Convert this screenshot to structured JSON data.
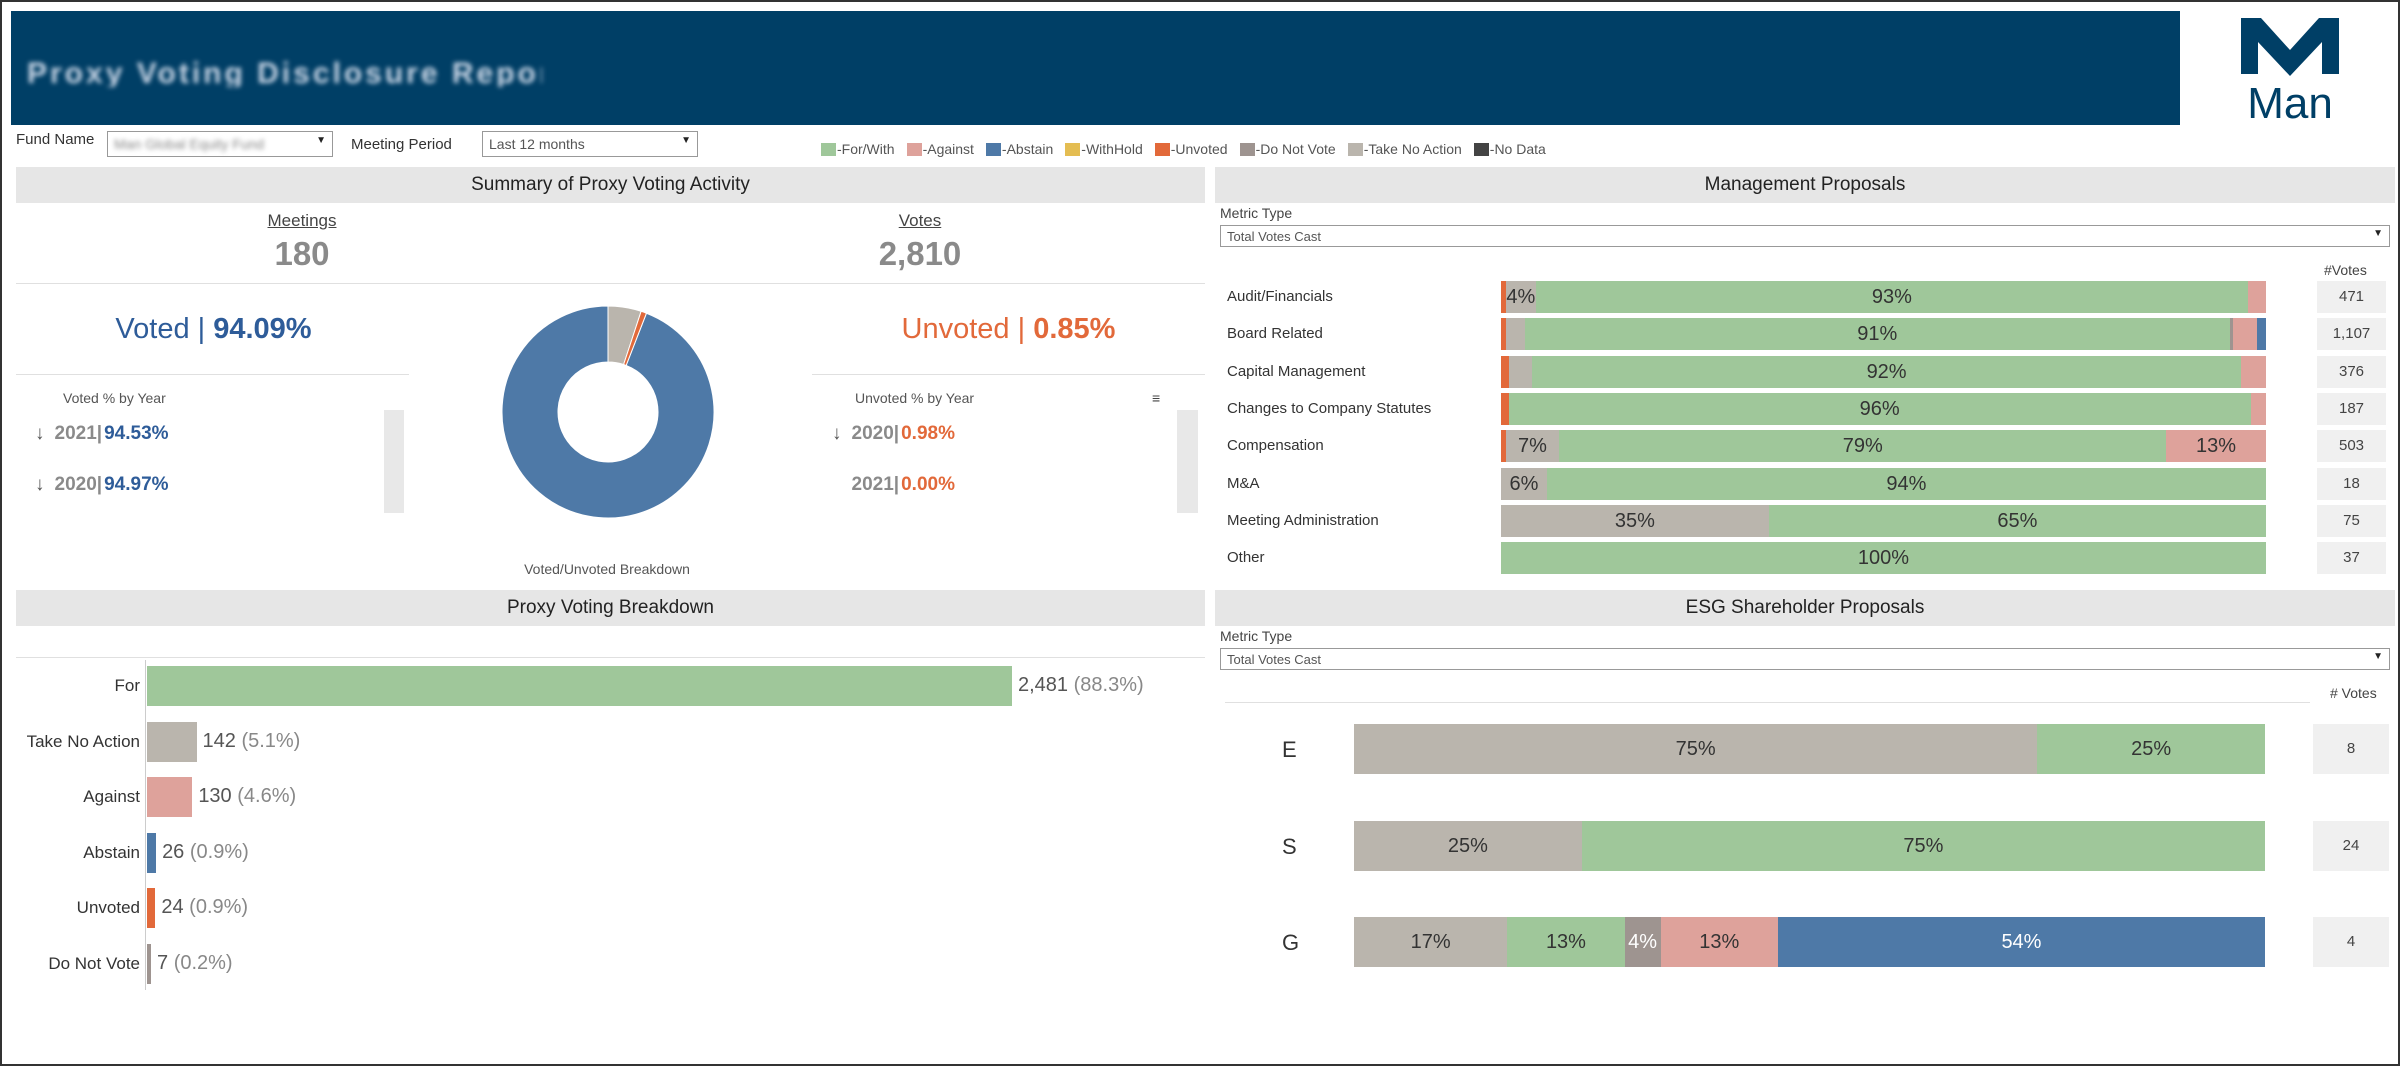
{
  "header": {
    "title": "Proxy Voting Disclosure Report",
    "logo_text": "Man"
  },
  "filters": {
    "fund_label": "Fund Name",
    "fund_value": "Man Global Equity Fund",
    "period_label": "Meeting Period",
    "period_value": "Last 12 months"
  },
  "legend": [
    {
      "label": "-For/With",
      "color": "#9fc79a"
    },
    {
      "label": "-Against",
      "color": "#dea29b"
    },
    {
      "label": "-Abstain",
      "color": "#4e79a7"
    },
    {
      "label": "-WithHold",
      "color": "#e4bd52"
    },
    {
      "label": "-Unvoted",
      "color": "#e2693a"
    },
    {
      "label": "-Do Not Vote",
      "color": "#9e9490"
    },
    {
      "label": "-Take No Action",
      "color": "#bab5ad"
    },
    {
      "label": "-No Data",
      "color": "#444444"
    }
  ],
  "summary": {
    "title": "Summary of Proxy Voting Activity",
    "meetings_label": "Meetings",
    "meetings_value": "180",
    "votes_label": "Votes",
    "votes_value": "2,810",
    "voted_label": "Voted |",
    "voted_pct": "94.09%",
    "unvoted_label": "Unvoted |",
    "unvoted_pct": "0.85%",
    "voted_by_year_label": "Voted % by Year",
    "voted_by_year": [
      {
        "arrow": "↓",
        "year": "2021|",
        "pct": "94.53%"
      },
      {
        "arrow": "↓",
        "year": "2020|",
        "pct": "94.97%"
      }
    ],
    "unvoted_by_year_label": "Unvoted % by Year",
    "unvoted_by_year": [
      {
        "arrow": "↓",
        "year": "2020|",
        "pct": "0.98%"
      },
      {
        "arrow": "",
        "year": "2021|",
        "pct": "0.00%"
      }
    ],
    "donut_caption": "Voted/Unvoted Breakdown"
  },
  "management": {
    "title": "Management Proposals",
    "metric_label": "Metric Type",
    "metric_value": "Total Votes Cast",
    "votes_header": "#Votes"
  },
  "esg": {
    "title": "ESG Shareholder Proposals",
    "metric_label": "Metric Type",
    "metric_value": "Total Votes Cast",
    "votes_header": "# Votes"
  },
  "breakdown": {
    "title": "Proxy Voting Breakdown"
  },
  "chart_data": [
    {
      "type": "pie",
      "name": "Voted/Unvoted Breakdown",
      "slices": [
        {
          "label": "Voted",
          "value": 94.09,
          "color": "#4e79a7"
        },
        {
          "label": "Unvoted",
          "value": 0.85,
          "color": "#e2693a"
        },
        {
          "label": "Take No Action",
          "value": 5.06,
          "color": "#bab5ad"
        }
      ]
    },
    {
      "type": "bar",
      "name": "Management Proposals",
      "stacked": true,
      "orientation": "horizontal",
      "categories": [
        "Audit/Financials",
        "Board Related",
        "Capital Management",
        "Changes to Company Statutes",
        "Compensation",
        "M&A",
        "Meeting Administration",
        "Other"
      ],
      "votes": [
        "471",
        "1,107",
        "376",
        "187",
        "503",
        "18",
        "75",
        "37"
      ],
      "rows": [
        [
          {
            "s": "Unvoted",
            "v": 0.6
          },
          {
            "s": "Take No Action",
            "v": 4,
            "label": "4%"
          },
          {
            "s": "For/With",
            "v": 93,
            "label": "93%"
          },
          {
            "s": "Against",
            "v": 2.4
          }
        ],
        [
          {
            "s": "Unvoted",
            "v": 0.6
          },
          {
            "s": "Take No Action",
            "v": 2.5
          },
          {
            "s": "For/With",
            "v": 91,
            "label": "91%"
          },
          {
            "s": "Do Not Vote",
            "v": 0.5
          },
          {
            "s": "Against",
            "v": 3.1
          },
          {
            "s": "Abstain",
            "v": 1.1
          }
        ],
        [
          {
            "s": "Unvoted",
            "v": 1
          },
          {
            "s": "Take No Action",
            "v": 3
          },
          {
            "s": "For/With",
            "v": 92,
            "label": "92%"
          },
          {
            "s": "Against",
            "v": 3.2
          }
        ],
        [
          {
            "s": "Unvoted",
            "v": 1
          },
          {
            "s": "For/With",
            "v": 96,
            "label": "96%"
          },
          {
            "s": "Against",
            "v": 2
          }
        ],
        [
          {
            "s": "Unvoted",
            "v": 0.6
          },
          {
            "s": "Take No Action",
            "v": 7,
            "label": "7%"
          },
          {
            "s": "For/With",
            "v": 79,
            "label": "79%"
          },
          {
            "s": "Against",
            "v": 13,
            "label": "13%"
          }
        ],
        [
          {
            "s": "Take No Action",
            "v": 6,
            "label": "6%"
          },
          {
            "s": "For/With",
            "v": 94,
            "label": "94%"
          }
        ],
        [
          {
            "s": "Take No Action",
            "v": 35,
            "label": "35%"
          },
          {
            "s": "For/With",
            "v": 65,
            "label": "65%"
          }
        ],
        [
          {
            "s": "For/With",
            "v": 100,
            "label": "100%"
          }
        ]
      ]
    },
    {
      "type": "bar",
      "name": "Proxy Voting Breakdown",
      "orientation": "horizontal",
      "categories": [
        "For",
        "Take No Action",
        "Against",
        "Abstain",
        "Unvoted",
        "Do Not Vote"
      ],
      "values": [
        2481,
        142,
        130,
        26,
        24,
        7
      ],
      "value_labels": [
        "2,481",
        "142",
        "130",
        "26",
        "24",
        "7"
      ],
      "pct_labels": [
        "(88.3%)",
        "(5.1%)",
        "(4.6%)",
        "(0.9%)",
        "(0.9%)",
        "(0.2%)"
      ],
      "colors": [
        "#9fc79a",
        "#bab5ad",
        "#dea29b",
        "#4e79a7",
        "#e2693a",
        "#9e9490"
      ]
    },
    {
      "type": "bar",
      "name": "ESG Shareholder Proposals",
      "stacked": true,
      "orientation": "horizontal",
      "categories": [
        "E",
        "S",
        "G"
      ],
      "votes": [
        "8",
        "24",
        "4"
      ],
      "rows": [
        [
          {
            "s": "Take No Action",
            "v": 75,
            "label": "75%"
          },
          {
            "s": "For/With",
            "v": 25,
            "label": "25%"
          }
        ],
        [
          {
            "s": "Take No Action",
            "v": 25,
            "label": "25%"
          },
          {
            "s": "For/With",
            "v": 75,
            "label": "75%"
          }
        ],
        [
          {
            "s": "Take No Action",
            "v": 17,
            "label": "17%"
          },
          {
            "s": "For/With",
            "v": 13,
            "label": "13%"
          },
          {
            "s": "Do Not Vote",
            "v": 4,
            "label": "4%"
          },
          {
            "s": "Against",
            "v": 13,
            "label": "13%"
          },
          {
            "s": "Abstain",
            "v": 54,
            "label": "54%"
          }
        ]
      ]
    }
  ]
}
